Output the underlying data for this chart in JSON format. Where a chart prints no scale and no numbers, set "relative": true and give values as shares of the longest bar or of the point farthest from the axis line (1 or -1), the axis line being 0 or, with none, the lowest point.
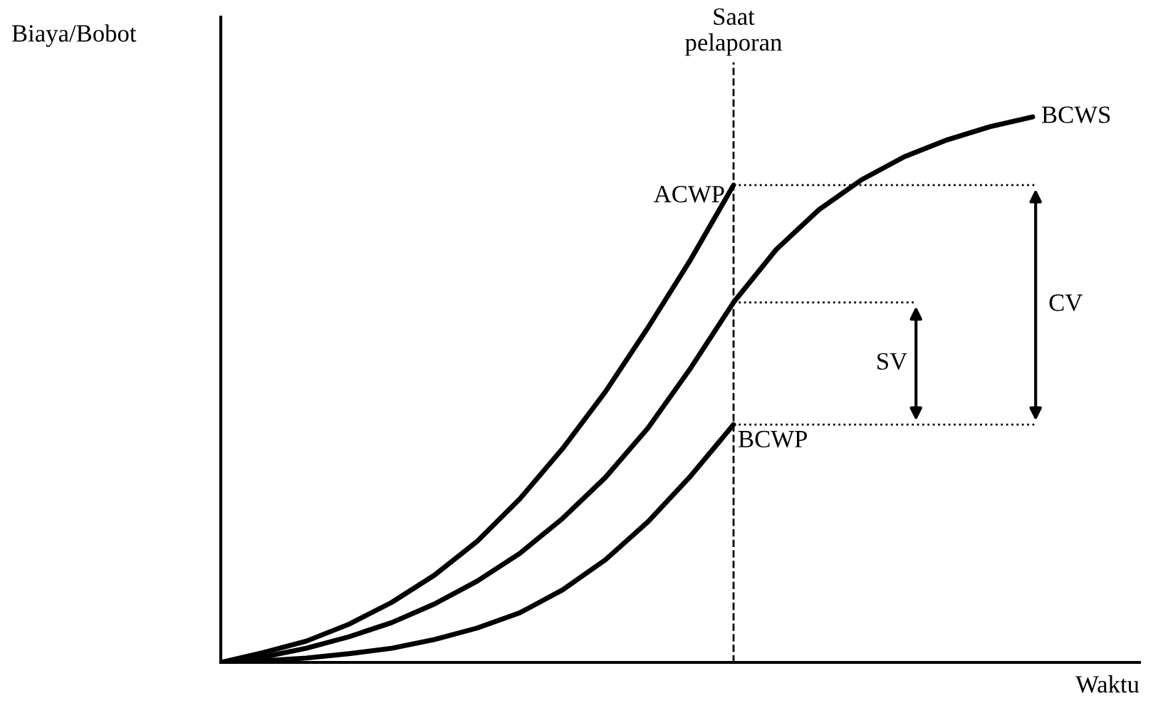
{
  "chart_data": {
    "type": "line",
    "relative": true,
    "xlabel": "Waktu",
    "ylabel": "Biaya/Bobot",
    "categories": [
      null,
      null,
      null,
      null,
      null,
      null,
      null,
      null,
      null,
      null,
      null,
      null,
      null,
      null,
      null,
      null,
      null,
      null,
      null,
      null
    ],
    "series": [
      {
        "name": "BCWS",
        "color": "#000000",
        "values": [
          0,
          0.01,
          0.026,
          0.047,
          0.073,
          0.107,
          0.149,
          0.2,
          0.264,
          0.339,
          0.43,
          0.54,
          0.66,
          0.757,
          0.83,
          0.885,
          0.927,
          0.958,
          0.982,
          1.0
        ]
      },
      {
        "name": "ACWP",
        "color": "#000000",
        "values": [
          0,
          0.018,
          0.039,
          0.07,
          0.11,
          0.16,
          0.222,
          0.3,
          0.392,
          0.496,
          0.614,
          0.739,
          0.875,
          null,
          null,
          null,
          null,
          null,
          null,
          null
        ]
      },
      {
        "name": "BCWP",
        "color": "#000000",
        "values": [
          0,
          0.003,
          0.008,
          0.016,
          0.026,
          0.042,
          0.063,
          0.091,
          0.133,
          0.188,
          0.258,
          0.342,
          0.436,
          null,
          null,
          null,
          null,
          null,
          null,
          null
        ]
      }
    ],
    "annotations": [
      "Saat\npelaporan",
      "SV",
      "CV"
    ],
    "tick_labels": false,
    "marker": "none",
    "line_style": "solid"
  }
}
